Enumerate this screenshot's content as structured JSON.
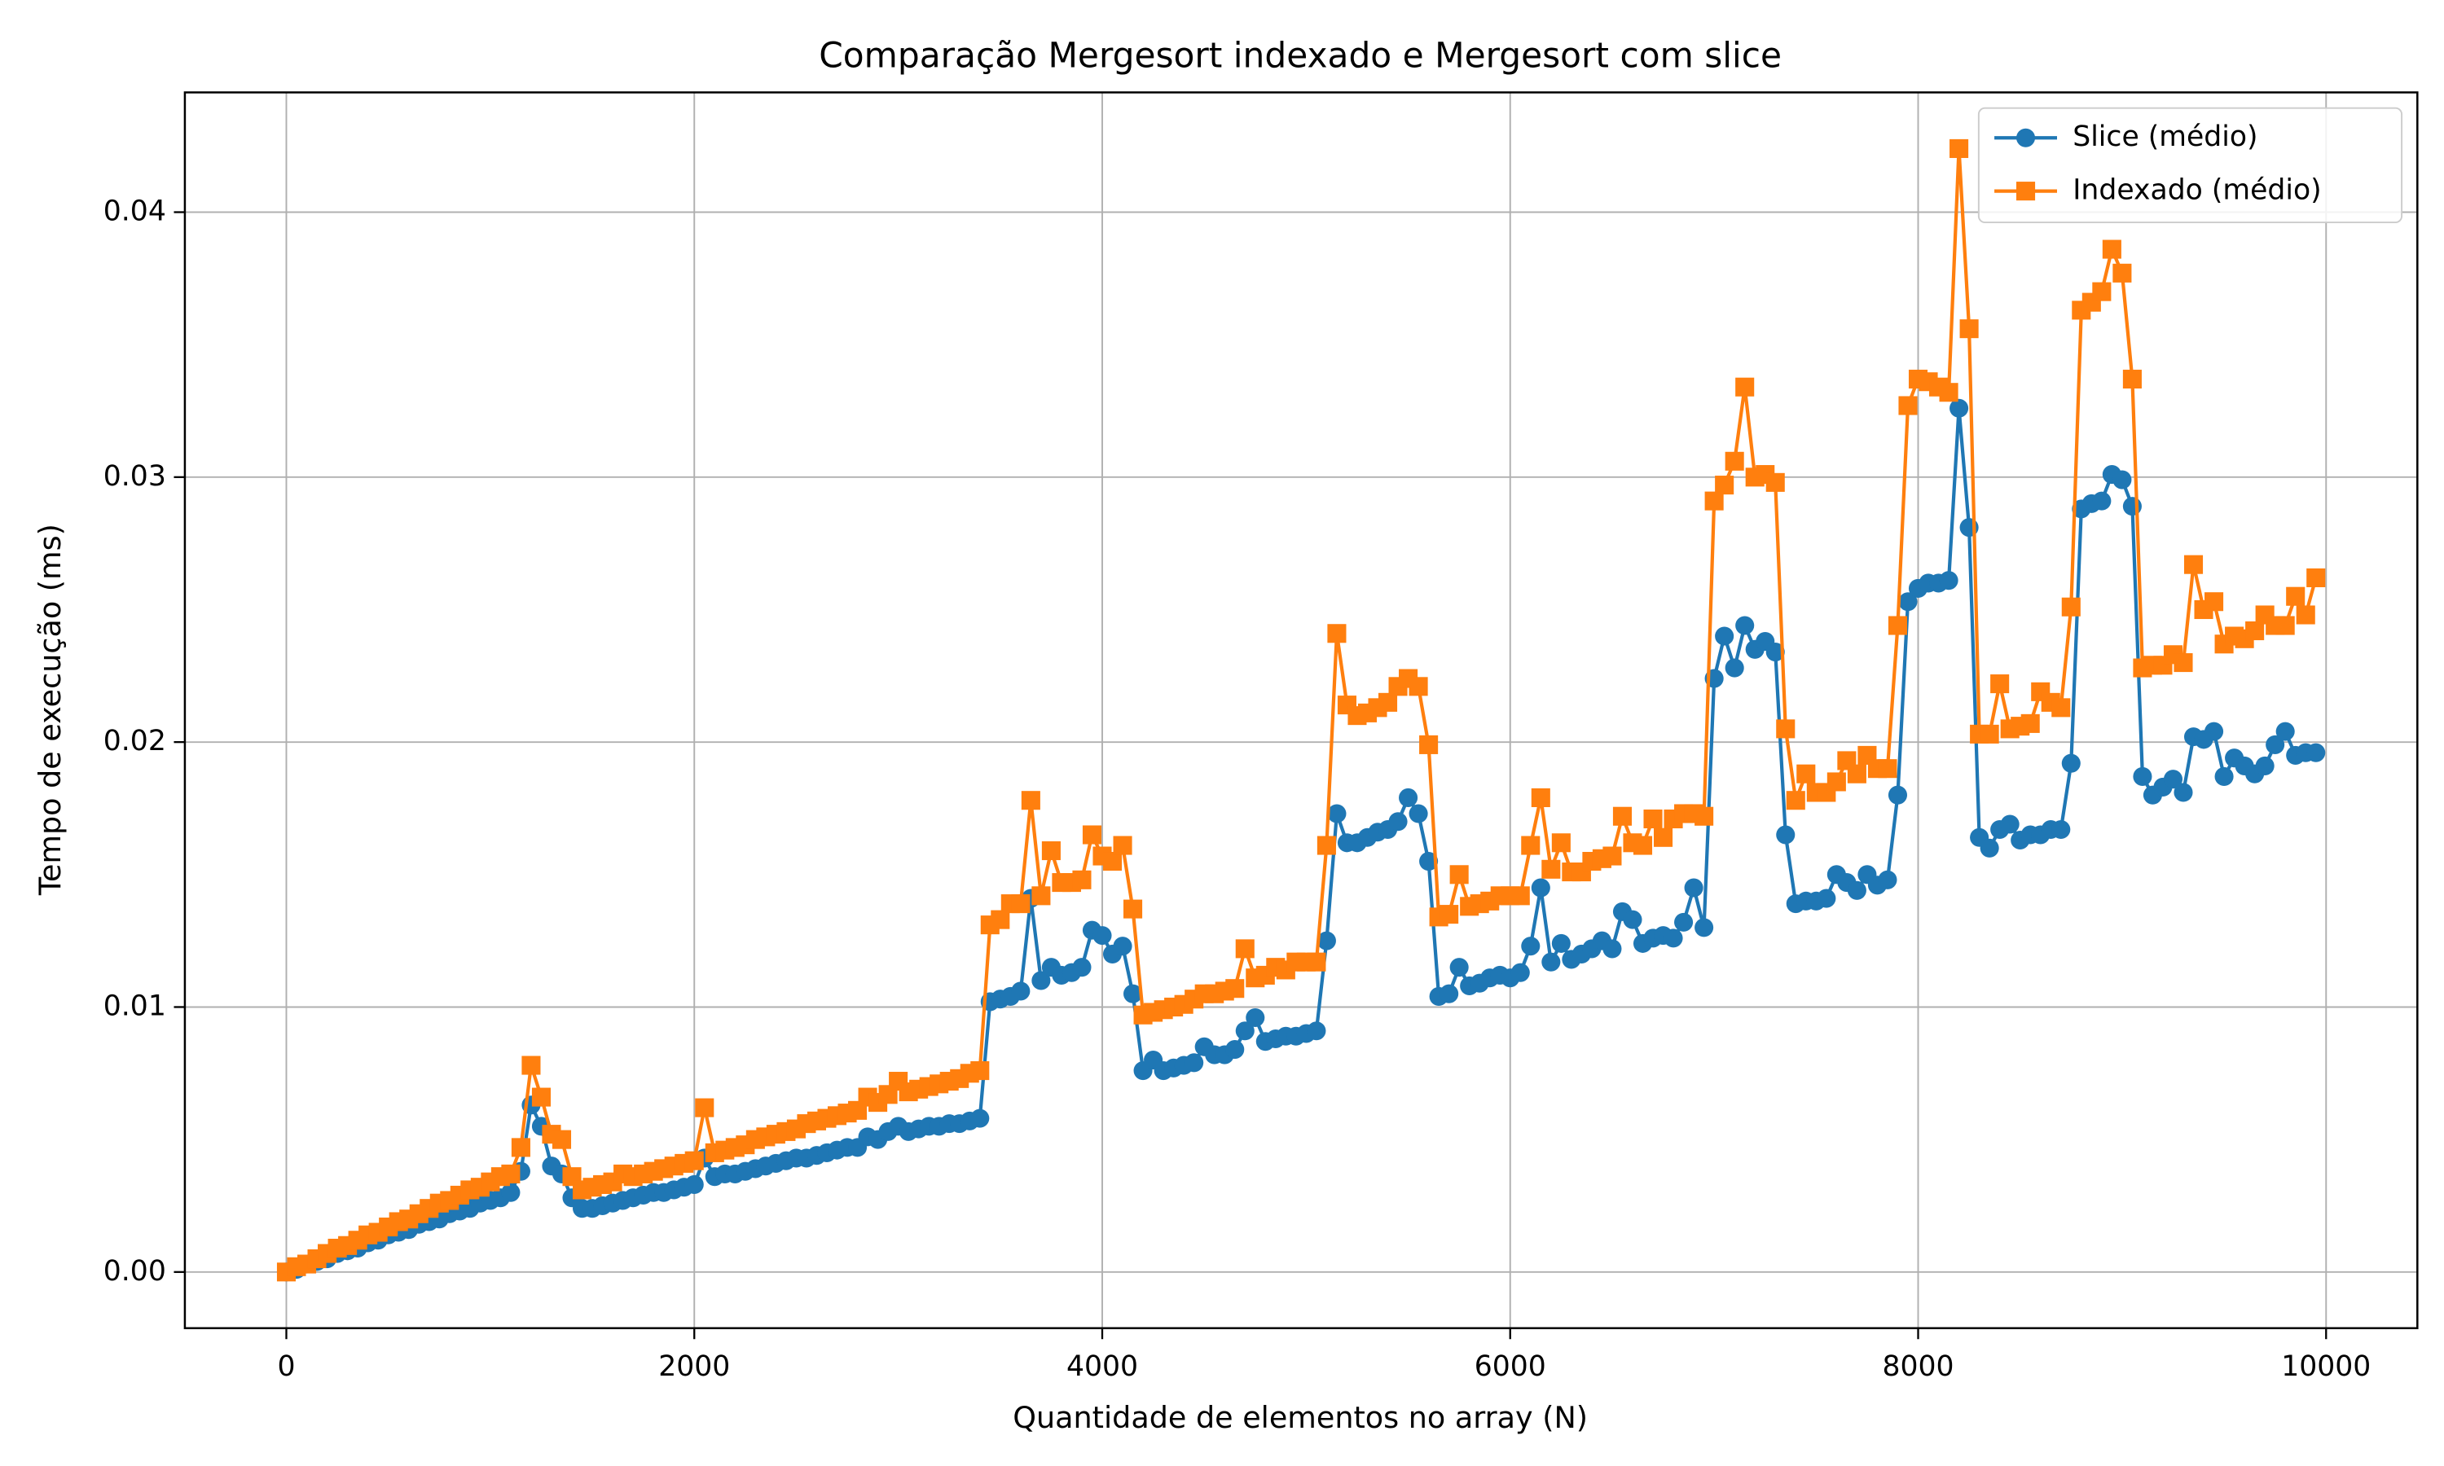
{
  "chart_data": {
    "type": "line",
    "title": "Comparação Mergesort indexado e Mergesort com slice",
    "xlabel": "Quantidade de elementos no array (N)",
    "ylabel": "Tempo de execução (ms)",
    "xlim": [
      -497.5,
      10447.5
    ],
    "ylim": [
      -0.00212,
      0.04452
    ],
    "xticks": [
      0,
      2000,
      4000,
      6000,
      8000,
      10000
    ],
    "yticks": [
      {
        "value": 0,
        "label": "0.00"
      },
      {
        "value": 0.01,
        "label": "0.01"
      },
      {
        "value": 0.02,
        "label": "0.02"
      },
      {
        "value": 0.03,
        "label": "0.03"
      },
      {
        "value": 0.04,
        "label": "0.04"
      }
    ],
    "grid": true,
    "legend": "upper right",
    "x": [
      0,
      50,
      100,
      150,
      200,
      250,
      300,
      350,
      400,
      450,
      500,
      550,
      600,
      650,
      700,
      750,
      800,
      850,
      900,
      950,
      1000,
      1050,
      1100,
      1150,
      1200,
      1250,
      1300,
      1350,
      1400,
      1450,
      1500,
      1550,
      1600,
      1650,
      1700,
      1750,
      1800,
      1850,
      1900,
      1950,
      2000,
      2050,
      2100,
      2150,
      2200,
      2250,
      2300,
      2350,
      2400,
      2450,
      2500,
      2550,
      2600,
      2650,
      2700,
      2750,
      2800,
      2850,
      2900,
      2950,
      3000,
      3050,
      3100,
      3150,
      3200,
      3250,
      3300,
      3350,
      3400,
      3450,
      3500,
      3550,
      3600,
      3650,
      3700,
      3750,
      3800,
      3850,
      3900,
      3950,
      4000,
      4050,
      4100,
      4150,
      4200,
      4250,
      4300,
      4350,
      4400,
      4450,
      4500,
      4550,
      4600,
      4650,
      4700,
      4750,
      4800,
      4850,
      4900,
      4950,
      5000,
      5050,
      5100,
      5150,
      5200,
      5250,
      5300,
      5350,
      5400,
      5450,
      5500,
      5550,
      5600,
      5650,
      5700,
      5750,
      5800,
      5850,
      5900,
      5950,
      6000,
      6050,
      6100,
      6150,
      6200,
      6250,
      6300,
      6350,
      6400,
      6450,
      6500,
      6550,
      6600,
      6650,
      6700,
      6750,
      6800,
      6850,
      6900,
      6950,
      7000,
      7050,
      7100,
      7150,
      7200,
      7250,
      7300,
      7350,
      7400,
      7450,
      7500,
      7550,
      7600,
      7650,
      7700,
      7750,
      7800,
      7850,
      7900,
      7950,
      8000,
      8050,
      8100,
      8150,
      8200,
      8250,
      8300,
      8350,
      8400,
      8450,
      8500,
      8550,
      8600,
      8650,
      8700,
      8750,
      8800,
      8850,
      8900,
      8950,
      9000,
      9050,
      9100,
      9150,
      9200,
      9250,
      9300,
      9350,
      9400,
      9450,
      9500,
      9550,
      9600,
      9650,
      9700,
      9750,
      9800,
      9850,
      9900,
      9950
    ],
    "series": [
      {
        "name": "Slice (médio)",
        "color": "#1f77b4",
        "marker": "circle",
        "values": [
          0,
          0.0001,
          0.0003,
          0.0004,
          0.0005,
          0.0007,
          0.0008,
          0.0009,
          0.0011,
          0.0012,
          0.0014,
          0.0015,
          0.0016,
          0.0018,
          0.0019,
          0.002,
          0.0022,
          0.0023,
          0.0024,
          0.0026,
          0.0027,
          0.0028,
          0.003,
          0.0038,
          0.0063,
          0.0055,
          0.004,
          0.0037,
          0.0028,
          0.0024,
          0.0024,
          0.0025,
          0.0026,
          0.0027,
          0.0028,
          0.0029,
          0.003,
          0.003,
          0.0031,
          0.0032,
          0.0033,
          0.0043,
          0.0036,
          0.0037,
          0.0037,
          0.0038,
          0.0039,
          0.004,
          0.0041,
          0.0042,
          0.0043,
          0.0043,
          0.0044,
          0.0045,
          0.0046,
          0.0047,
          0.0047,
          0.0051,
          0.005,
          0.0053,
          0.0055,
          0.0053,
          0.0054,
          0.0055,
          0.0055,
          0.0056,
          0.0056,
          0.0057,
          0.0058,
          0.0102,
          0.0103,
          0.0104,
          0.0106,
          0.0141,
          0.011,
          0.0115,
          0.0112,
          0.0113,
          0.0115,
          0.0129,
          0.0127,
          0.012,
          0.0123,
          0.0105,
          0.0076,
          0.008,
          0.0076,
          0.0077,
          0.0078,
          0.0079,
          0.0085,
          0.0082,
          0.0082,
          0.0084,
          0.0091,
          0.0096,
          0.0087,
          0.0088,
          0.0089,
          0.0089,
          0.009,
          0.0091,
          0.0125,
          0.0173,
          0.0162,
          0.0162,
          0.0164,
          0.0166,
          0.0167,
          0.017,
          0.0179,
          0.0173,
          0.0155,
          0.0104,
          0.0105,
          0.0115,
          0.0108,
          0.0109,
          0.0111,
          0.0112,
          0.0111,
          0.0113,
          0.0123,
          0.0145,
          0.0117,
          0.0124,
          0.0118,
          0.012,
          0.0122,
          0.0125,
          0.0122,
          0.0136,
          0.0133,
          0.0124,
          0.0126,
          0.0127,
          0.0126,
          0.0132,
          0.0145,
          0.013,
          0.0224,
          0.024,
          0.0228,
          0.0244,
          0.0235,
          0.0238,
          0.0234,
          0.0165,
          0.0139,
          0.014,
          0.014,
          0.0141,
          0.015,
          0.0147,
          0.0144,
          0.015,
          0.0146,
          0.0148,
          0.018,
          0.0253,
          0.0258,
          0.026,
          0.026,
          0.0261,
          0.0326,
          0.0281,
          0.0164,
          0.016,
          0.0167,
          0.0169,
          0.0163,
          0.0165,
          0.0165,
          0.0167,
          0.0167,
          0.0192,
          0.0288,
          0.029,
          0.0291,
          0.0301,
          0.0299,
          0.0289,
          0.0187,
          0.018,
          0.0183,
          0.0186,
          0.0181,
          0.0202,
          0.0201,
          0.0204,
          0.0187,
          0.0194,
          0.0191,
          0.0188,
          0.0191,
          0.0199,
          0.0204,
          0.0195,
          0.0196,
          0.0196
        ]
      },
      {
        "name": "Indexado (médio)",
        "color": "#ff7f0e",
        "marker": "square",
        "values": [
          0,
          0.0002,
          0.0003,
          0.0005,
          0.0007,
          0.0009,
          0.001,
          0.0012,
          0.0014,
          0.0015,
          0.0017,
          0.0019,
          0.002,
          0.0022,
          0.0024,
          0.0026,
          0.0027,
          0.0029,
          0.0031,
          0.0032,
          0.0034,
          0.0036,
          0.0037,
          0.0047,
          0.0078,
          0.0066,
          0.0052,
          0.005,
          0.0036,
          0.0031,
          0.0032,
          0.0033,
          0.0034,
          0.0037,
          0.0036,
          0.0037,
          0.0038,
          0.0039,
          0.004,
          0.0041,
          0.0042,
          0.0062,
          0.0045,
          0.0046,
          0.0047,
          0.0048,
          0.005,
          0.0051,
          0.0052,
          0.0053,
          0.0054,
          0.0056,
          0.0057,
          0.0058,
          0.0059,
          0.006,
          0.0061,
          0.0066,
          0.0064,
          0.0067,
          0.0072,
          0.0068,
          0.0069,
          0.007,
          0.0071,
          0.0072,
          0.0073,
          0.0075,
          0.0076,
          0.0131,
          0.0133,
          0.0139,
          0.0139,
          0.0178,
          0.0142,
          0.0159,
          0.0147,
          0.0147,
          0.0148,
          0.0165,
          0.0157,
          0.0155,
          0.0161,
          0.0137,
          0.0097,
          0.0098,
          0.0099,
          0.01,
          0.0101,
          0.0103,
          0.0105,
          0.0105,
          0.0106,
          0.0107,
          0.0122,
          0.0111,
          0.0112,
          0.0115,
          0.0114,
          0.0117,
          0.0117,
          0.0117,
          0.0161,
          0.0241,
          0.0214,
          0.021,
          0.0211,
          0.0213,
          0.0215,
          0.0221,
          0.0224,
          0.0221,
          0.0199,
          0.0134,
          0.0135,
          0.015,
          0.0138,
          0.0139,
          0.014,
          0.0142,
          0.0142,
          0.0142,
          0.0161,
          0.0179,
          0.0152,
          0.0162,
          0.0151,
          0.0151,
          0.0155,
          0.0156,
          0.0157,
          0.0172,
          0.0162,
          0.0161,
          0.0171,
          0.0164,
          0.0171,
          0.0173,
          0.0173,
          0.0172,
          0.0291,
          0.0297,
          0.0306,
          0.0334,
          0.03,
          0.0301,
          0.0298,
          0.0205,
          0.0178,
          0.0188,
          0.0181,
          0.0181,
          0.0185,
          0.0193,
          0.0188,
          0.0195,
          0.019,
          0.019,
          0.0244,
          0.0327,
          0.0337,
          0.0336,
          0.0334,
          0.0332,
          0.0424,
          0.0356,
          0.0203,
          0.0203,
          0.0222,
          0.0205,
          0.0206,
          0.0207,
          0.0219,
          0.0215,
          0.0213,
          0.0251,
          0.0363,
          0.0366,
          0.037,
          0.0386,
          0.0377,
          0.0337,
          0.0228,
          0.0229,
          0.0229,
          0.0233,
          0.023,
          0.0267,
          0.025,
          0.0253,
          0.0237,
          0.024,
          0.0239,
          0.0242,
          0.0248,
          0.0244,
          0.0244,
          0.0255,
          0.0248,
          0.0262
        ]
      }
    ]
  }
}
